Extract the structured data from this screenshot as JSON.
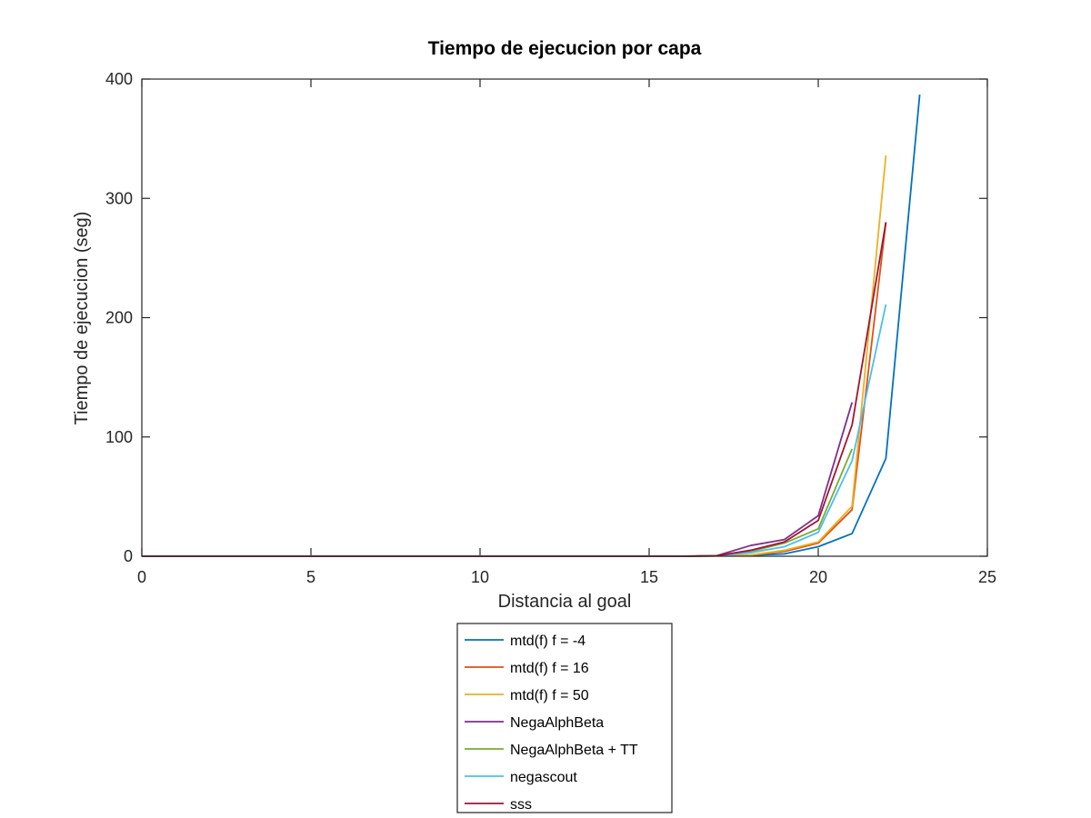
{
  "chart_data": {
    "type": "line",
    "title": "Tiempo de ejecucion por capa",
    "xlabel": "Distancia al goal",
    "ylabel": "Tiempo de ejecucion (seg)",
    "xlim": [
      0,
      25
    ],
    "ylim": [
      0,
      400
    ],
    "xticks": [
      0,
      5,
      10,
      15,
      20,
      25
    ],
    "yticks": [
      0,
      100,
      200,
      300,
      400
    ],
    "grid": false,
    "legend_placement": "below plot",
    "series": [
      {
        "name": "mtd(f) f = -4",
        "color": "#0072BD",
        "x": [
          0,
          1,
          2,
          3,
          4,
          5,
          6,
          7,
          8,
          9,
          10,
          11,
          12,
          13,
          14,
          15,
          16,
          17,
          18,
          19,
          20,
          21,
          22,
          23
        ],
        "y": [
          0,
          0,
          0,
          0,
          0,
          0,
          0,
          0,
          0,
          0,
          0,
          0,
          0,
          0,
          0,
          0,
          0,
          0.3,
          0.8,
          2,
          8,
          19,
          82,
          387
        ]
      },
      {
        "name": "mtd(f) f = 16",
        "color": "#D95319",
        "x": [
          0,
          1,
          2,
          3,
          4,
          5,
          6,
          7,
          8,
          9,
          10,
          11,
          12,
          13,
          14,
          15,
          16,
          17,
          18,
          19,
          20,
          21,
          22
        ],
        "y": [
          0,
          0,
          0,
          0,
          0,
          0,
          0,
          0,
          0,
          0,
          0,
          0,
          0,
          0,
          0,
          0,
          0,
          0.3,
          1,
          4,
          11,
          39,
          280
        ]
      },
      {
        "name": "mtd(f) f = 50",
        "color": "#EDB120",
        "x": [
          0,
          1,
          2,
          3,
          4,
          5,
          6,
          7,
          8,
          9,
          10,
          11,
          12,
          13,
          14,
          15,
          16,
          17,
          18,
          19,
          20,
          21,
          22
        ],
        "y": [
          0,
          0,
          0,
          0,
          0,
          0,
          0,
          0,
          0,
          0,
          0,
          0,
          0,
          0,
          0,
          0,
          0,
          0.3,
          1,
          5,
          12,
          42,
          336
        ]
      },
      {
        "name": "NegaAlphBeta",
        "color": "#7E2F8E",
        "x": [
          0,
          1,
          2,
          3,
          4,
          5,
          6,
          7,
          8,
          9,
          10,
          11,
          12,
          13,
          14,
          15,
          16,
          17,
          18,
          19,
          20,
          21
        ],
        "y": [
          0,
          0,
          0,
          0,
          0,
          0,
          0,
          0,
          0,
          0,
          0,
          0,
          0,
          0,
          0,
          0,
          0,
          0.5,
          9,
          14,
          34,
          129
        ]
      },
      {
        "name": "NegaAlphBeta + TT",
        "color": "#77AC30",
        "x": [
          0,
          1,
          2,
          3,
          4,
          5,
          6,
          7,
          8,
          9,
          10,
          11,
          12,
          13,
          14,
          15,
          16,
          17,
          18,
          19,
          20,
          21
        ],
        "y": [
          0,
          0,
          0,
          0,
          0,
          0,
          0,
          0,
          0,
          0,
          0,
          0,
          0,
          0,
          0,
          0,
          0,
          0.3,
          4,
          11,
          23,
          90
        ]
      },
      {
        "name": "negascout",
        "color": "#4DBEEE",
        "x": [
          0,
          1,
          2,
          3,
          4,
          5,
          6,
          7,
          8,
          9,
          10,
          11,
          12,
          13,
          14,
          15,
          16,
          17,
          18,
          19,
          20,
          21,
          22
        ],
        "y": [
          0,
          0,
          0,
          0,
          0,
          0,
          0,
          0,
          0,
          0,
          0,
          0,
          0,
          0,
          0,
          0,
          0,
          0.3,
          3,
          8,
          20,
          80,
          211
        ]
      },
      {
        "name": "sss",
        "color": "#A2142F",
        "x": [
          0,
          1,
          2,
          3,
          4,
          5,
          6,
          7,
          8,
          9,
          10,
          11,
          12,
          13,
          14,
          15,
          16,
          17,
          18,
          19,
          20,
          21,
          22
        ],
        "y": [
          0,
          0,
          0,
          0,
          0,
          0,
          0,
          0,
          0,
          0,
          0,
          0,
          0,
          0,
          0,
          0,
          0,
          0.4,
          5,
          12,
          30,
          110,
          280
        ]
      }
    ]
  }
}
